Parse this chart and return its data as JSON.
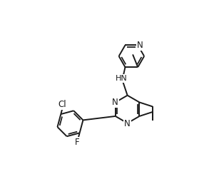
{
  "bg_color": "#ffffff",
  "line_color": "#1a1a1a",
  "line_width": 1.4,
  "font_size": 8.5,
  "xlim": [
    0,
    10
  ],
  "ylim": [
    0,
    9.5
  ],
  "figsize": [
    3.0,
    2.72
  ],
  "dpi": 100
}
